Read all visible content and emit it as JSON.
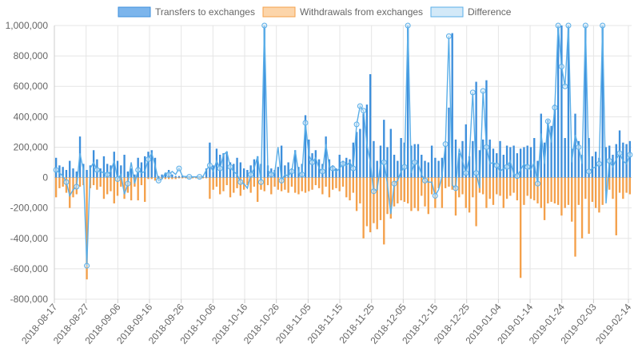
{
  "colors": {
    "transfers": "#3d8fdc",
    "transfers_fill": "#7cb5ec",
    "withdrawals": "#f4a04a",
    "withdrawals_fill": "#fcd5aa",
    "difference_stroke": "#5aaee8",
    "difference_fill": "#d3e9f8",
    "grid": "#e5e5e5",
    "tick_text": "#666666"
  },
  "chart_data": {
    "type": "bar",
    "legend_position": "top",
    "grid": true,
    "ylim": [
      -800000,
      1000000
    ],
    "yticks": [
      1000000,
      800000,
      600000,
      400000,
      200000,
      0,
      -200000,
      -400000,
      -600000,
      -800000
    ],
    "ytick_labels": [
      "1,000,000",
      "800,000",
      "600,000",
      "400,000",
      "200,000",
      "0",
      "-200,000",
      "-400,000",
      "-600,000",
      "-800,000"
    ],
    "x_start": "2018-08-17",
    "x_end": "2019-02-15",
    "xtick_labels": [
      "2018-08-17",
      "2018-08-27",
      "2018-09-06",
      "2018-09-16",
      "2018-09-26",
      "2018-10-06",
      "2018-10-16",
      "2018-10-26",
      "2018-11-05",
      "2018-11-15",
      "2018-11-25",
      "2018-12-05",
      "2018-12-15",
      "2018-12-25",
      "2019-01-04",
      "2019-01-14",
      "2019-01-24",
      "2019-02-03",
      "2019-02-14"
    ],
    "series": [
      {
        "name": "Transfers to exchanges",
        "type": "bar",
        "values": [
          130000,
          80000,
          70000,
          50000,
          110000,
          60000,
          40000,
          270000,
          90000,
          50000,
          80000,
          180000,
          120000,
          60000,
          140000,
          90000,
          80000,
          170000,
          110000,
          80000,
          150000,
          40000,
          60000,
          20000,
          130000,
          100000,
          140000,
          170000,
          180000,
          130000,
          10000,
          20000,
          30000,
          50000,
          20000,
          10000,
          10000,
          10000,
          10000,
          5000,
          5000,
          5000,
          5000,
          5000,
          60000,
          230000,
          80000,
          190000,
          150000,
          160000,
          170000,
          100000,
          90000,
          130000,
          100000,
          60000,
          50000,
          80000,
          120000,
          140000,
          90000,
          1050000,
          80000,
          60000,
          50000,
          70000,
          210000,
          80000,
          100000,
          60000,
          180000,
          70000,
          90000,
          410000,
          250000,
          160000,
          180000,
          120000,
          90000,
          270000,
          120000,
          80000,
          60000,
          150000,
          110000,
          130000,
          120000,
          230000,
          300000,
          320000,
          420000,
          480000,
          680000,
          240000,
          110000,
          210000,
          380000,
          200000,
          320000,
          150000,
          110000,
          260000,
          230000,
          1050000,
          210000,
          220000,
          220000,
          150000,
          110000,
          100000,
          210000,
          130000,
          110000,
          130000,
          210000,
          460000,
          950000,
          250000,
          160000,
          240000,
          350000,
          140000,
          240000,
          630000,
          180000,
          250000,
          640000,
          250000,
          190000,
          160000,
          240000,
          150000,
          210000,
          200000,
          210000,
          160000,
          190000,
          200000,
          210000,
          200000,
          260000,
          110000,
          420000,
          230000,
          380000,
          340000,
          480000,
          1050000,
          1050000,
          260000,
          1050000,
          190000,
          420000,
          240000,
          150000,
          1050000,
          260000,
          140000,
          170000,
          130000,
          1050000,
          200000,
          210000,
          150000,
          220000,
          310000,
          230000,
          220000,
          240000
        ],
        "description": "positive bars"
      },
      {
        "name": "Withdrawals from exchanges",
        "type": "bar",
        "values": [
          -130000,
          -70000,
          -60000,
          -100000,
          -200000,
          -130000,
          -110000,
          -60000,
          -50000,
          -670000,
          -70000,
          -50000,
          -80000,
          -60000,
          -140000,
          -110000,
          -90000,
          -170000,
          -120000,
          -60000,
          -140000,
          -100000,
          -150000,
          -60000,
          -150000,
          -50000,
          -160000,
          -10000,
          -10000,
          -20000,
          -10000,
          -10000,
          -10000,
          -10000,
          -10000,
          -10000,
          -5000,
          -5000,
          -5000,
          -5000,
          -5000,
          -5000,
          -5000,
          -5000,
          -5000,
          -140000,
          -80000,
          -60000,
          -110000,
          -90000,
          -50000,
          -130000,
          -100000,
          -70000,
          -120000,
          -80000,
          -50000,
          -100000,
          -60000,
          -160000,
          -80000,
          -90000,
          -50000,
          -110000,
          -60000,
          -80000,
          -90000,
          -80000,
          -100000,
          -60000,
          -100000,
          -110000,
          -90000,
          -100000,
          -90000,
          -80000,
          -50000,
          -70000,
          -110000,
          -60000,
          -130000,
          -80000,
          -70000,
          -90000,
          -60000,
          -130000,
          -150000,
          -100000,
          -220000,
          -170000,
          -400000,
          -320000,
          -360000,
          -300000,
          -340000,
          -280000,
          -440000,
          -240000,
          -270000,
          -190000,
          -170000,
          -150000,
          -160000,
          -170000,
          -220000,
          -200000,
          -220000,
          -120000,
          -190000,
          -240000,
          -110000,
          -200000,
          -70000,
          -200000,
          -70000,
          -60000,
          -80000,
          -250000,
          -130000,
          -110000,
          -200000,
          -230000,
          -130000,
          -320000,
          -100000,
          -110000,
          -200000,
          -140000,
          -180000,
          -110000,
          -120000,
          -200000,
          -140000,
          -120000,
          -100000,
          -150000,
          -660000,
          -180000,
          -120000,
          -140000,
          -150000,
          -170000,
          -200000,
          -280000,
          -170000,
          -160000,
          -170000,
          -180000,
          -250000,
          -200000,
          -180000,
          -290000,
          -520000,
          -180000,
          -400000,
          -140000,
          -370000,
          -160000,
          -200000,
          -230000,
          -180000,
          -90000,
          -80000,
          -140000,
          -380000,
          -100000,
          -140000,
          -100000,
          -110000,
          -80000,
          -90000
        ],
        "description": "negative bars"
      },
      {
        "name": "Difference",
        "type": "line",
        "values": [
          50000,
          30000,
          10000,
          -30000,
          -120000,
          -80000,
          -60000,
          160000,
          50000,
          -580000,
          60000,
          100000,
          50000,
          40000,
          30000,
          20000,
          40000,
          110000,
          -10000,
          20000,
          -110000,
          -40000,
          100000,
          -40000,
          50000,
          30000,
          40000,
          120000,
          160000,
          80000,
          -20000,
          -10000,
          30000,
          20000,
          40000,
          20000,
          60000,
          10000,
          5000,
          5000,
          5000,
          5000,
          5000,
          5000,
          50000,
          80000,
          40000,
          110000,
          60000,
          150000,
          170000,
          70000,
          40000,
          20000,
          -30000,
          -40000,
          -70000,
          20000,
          60000,
          140000,
          -30000,
          1050000,
          50000,
          20000,
          30000,
          200000,
          -20000,
          20000,
          10000,
          40000,
          180000,
          30000,
          20000,
          360000,
          150000,
          100000,
          130000,
          60000,
          40000,
          220000,
          70000,
          60000,
          40000,
          60000,
          90000,
          80000,
          100000,
          60000,
          350000,
          470000,
          440000,
          220000,
          100000,
          -90000,
          -80000,
          90000,
          100000,
          -40000,
          -240000,
          -40000,
          -20000,
          40000,
          70000,
          1050000,
          30000,
          100000,
          90000,
          20000,
          -20000,
          -30000,
          -30000,
          -120000,
          -80000,
          10000,
          220000,
          930000,
          -50000,
          -70000,
          190000,
          110000,
          30000,
          130000,
          560000,
          30000,
          -70000,
          570000,
          200000,
          90000,
          100000,
          80000,
          40000,
          60000,
          70000,
          110000,
          20000,
          10000,
          50000,
          90000,
          70000,
          50000,
          100000,
          -40000,
          290000,
          90000,
          370000,
          230000,
          460000,
          1050000,
          730000,
          600000,
          1050000,
          100000,
          280000,
          200000,
          90000,
          1050000,
          40000,
          60000,
          70000,
          90000,
          1050000,
          -170000,
          110000,
          70000,
          120000,
          160000,
          110000,
          90000,
          150000
        ],
        "description": "line with circle markers"
      }
    ]
  }
}
